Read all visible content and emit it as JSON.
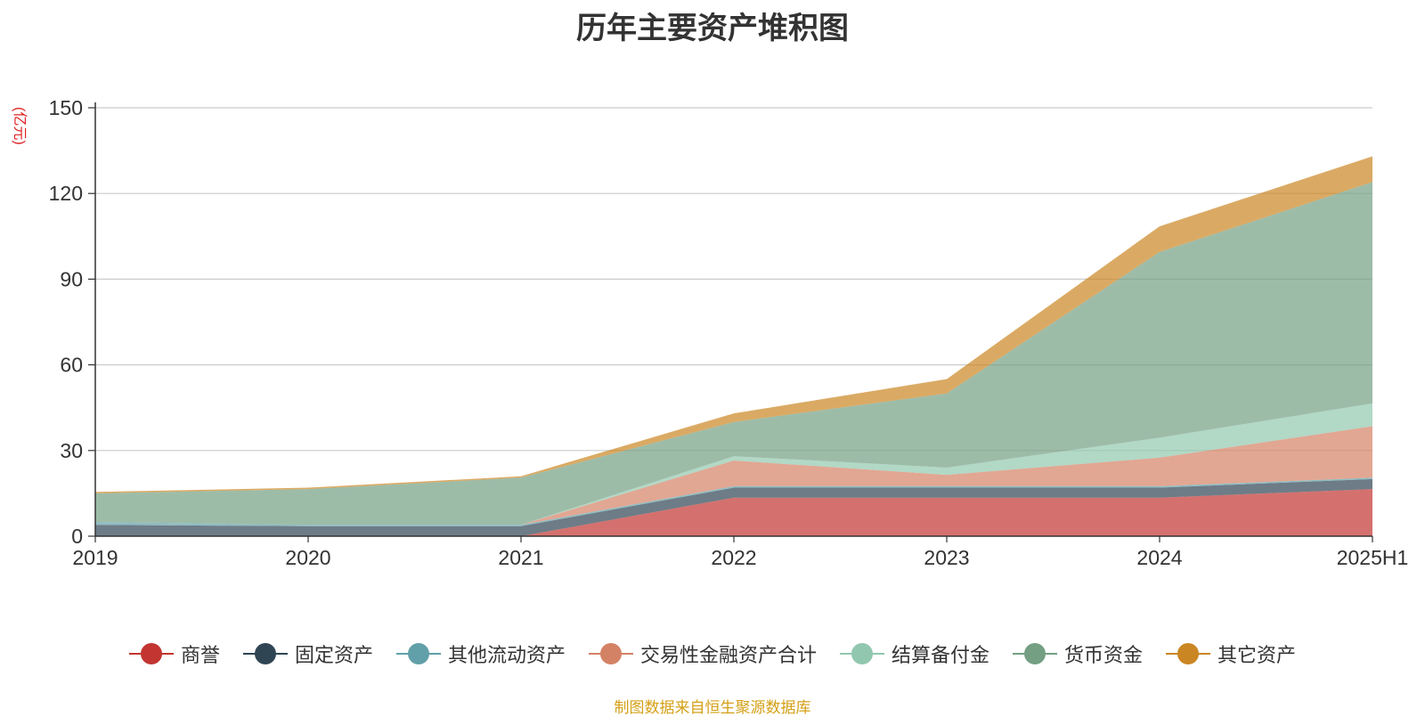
{
  "chart_data": {
    "type": "area",
    "stacked": true,
    "title": "历年主要资产堆积图",
    "unit_label": "(亿元)",
    "categories": [
      "2019",
      "2020",
      "2021",
      "2022",
      "2023",
      "2024",
      "2025H1"
    ],
    "ylim": [
      0,
      150
    ],
    "yticks": [
      0,
      30,
      60,
      90,
      120,
      150
    ],
    "grid": true,
    "legend_position": "bottom",
    "series": [
      {
        "name": "商誉",
        "color": "#c23531",
        "values": [
          0,
          0,
          0,
          13.5,
          13.5,
          13.5,
          16.5
        ]
      },
      {
        "name": "固定资产",
        "color": "#2f4554",
        "values": [
          4,
          3.5,
          3.5,
          3.5,
          3.5,
          3.5,
          3.5
        ]
      },
      {
        "name": "其他流动资产",
        "color": "#61a0a8",
        "values": [
          1,
          0.5,
          0.5,
          0.5,
          0.5,
          0.5,
          0.5
        ]
      },
      {
        "name": "交易性金融资产合计",
        "color": "#d48265",
        "values": [
          0,
          0,
          0,
          9,
          4,
          10,
          18
        ]
      },
      {
        "name": "结算备付金",
        "color": "#91c7ae",
        "values": [
          0,
          0,
          0,
          1.5,
          2.5,
          7,
          8
        ]
      },
      {
        "name": "货币资金",
        "color": "#749f83",
        "values": [
          10,
          12.5,
          16.5,
          12,
          26,
          65,
          77.5
        ]
      },
      {
        "name": "其它资产",
        "color": "#ca8622",
        "values": [
          0.5,
          0.5,
          0.5,
          3,
          5,
          9,
          9
        ]
      }
    ]
  },
  "footer": {
    "source": "制图数据来自恒生聚源数据库"
  }
}
